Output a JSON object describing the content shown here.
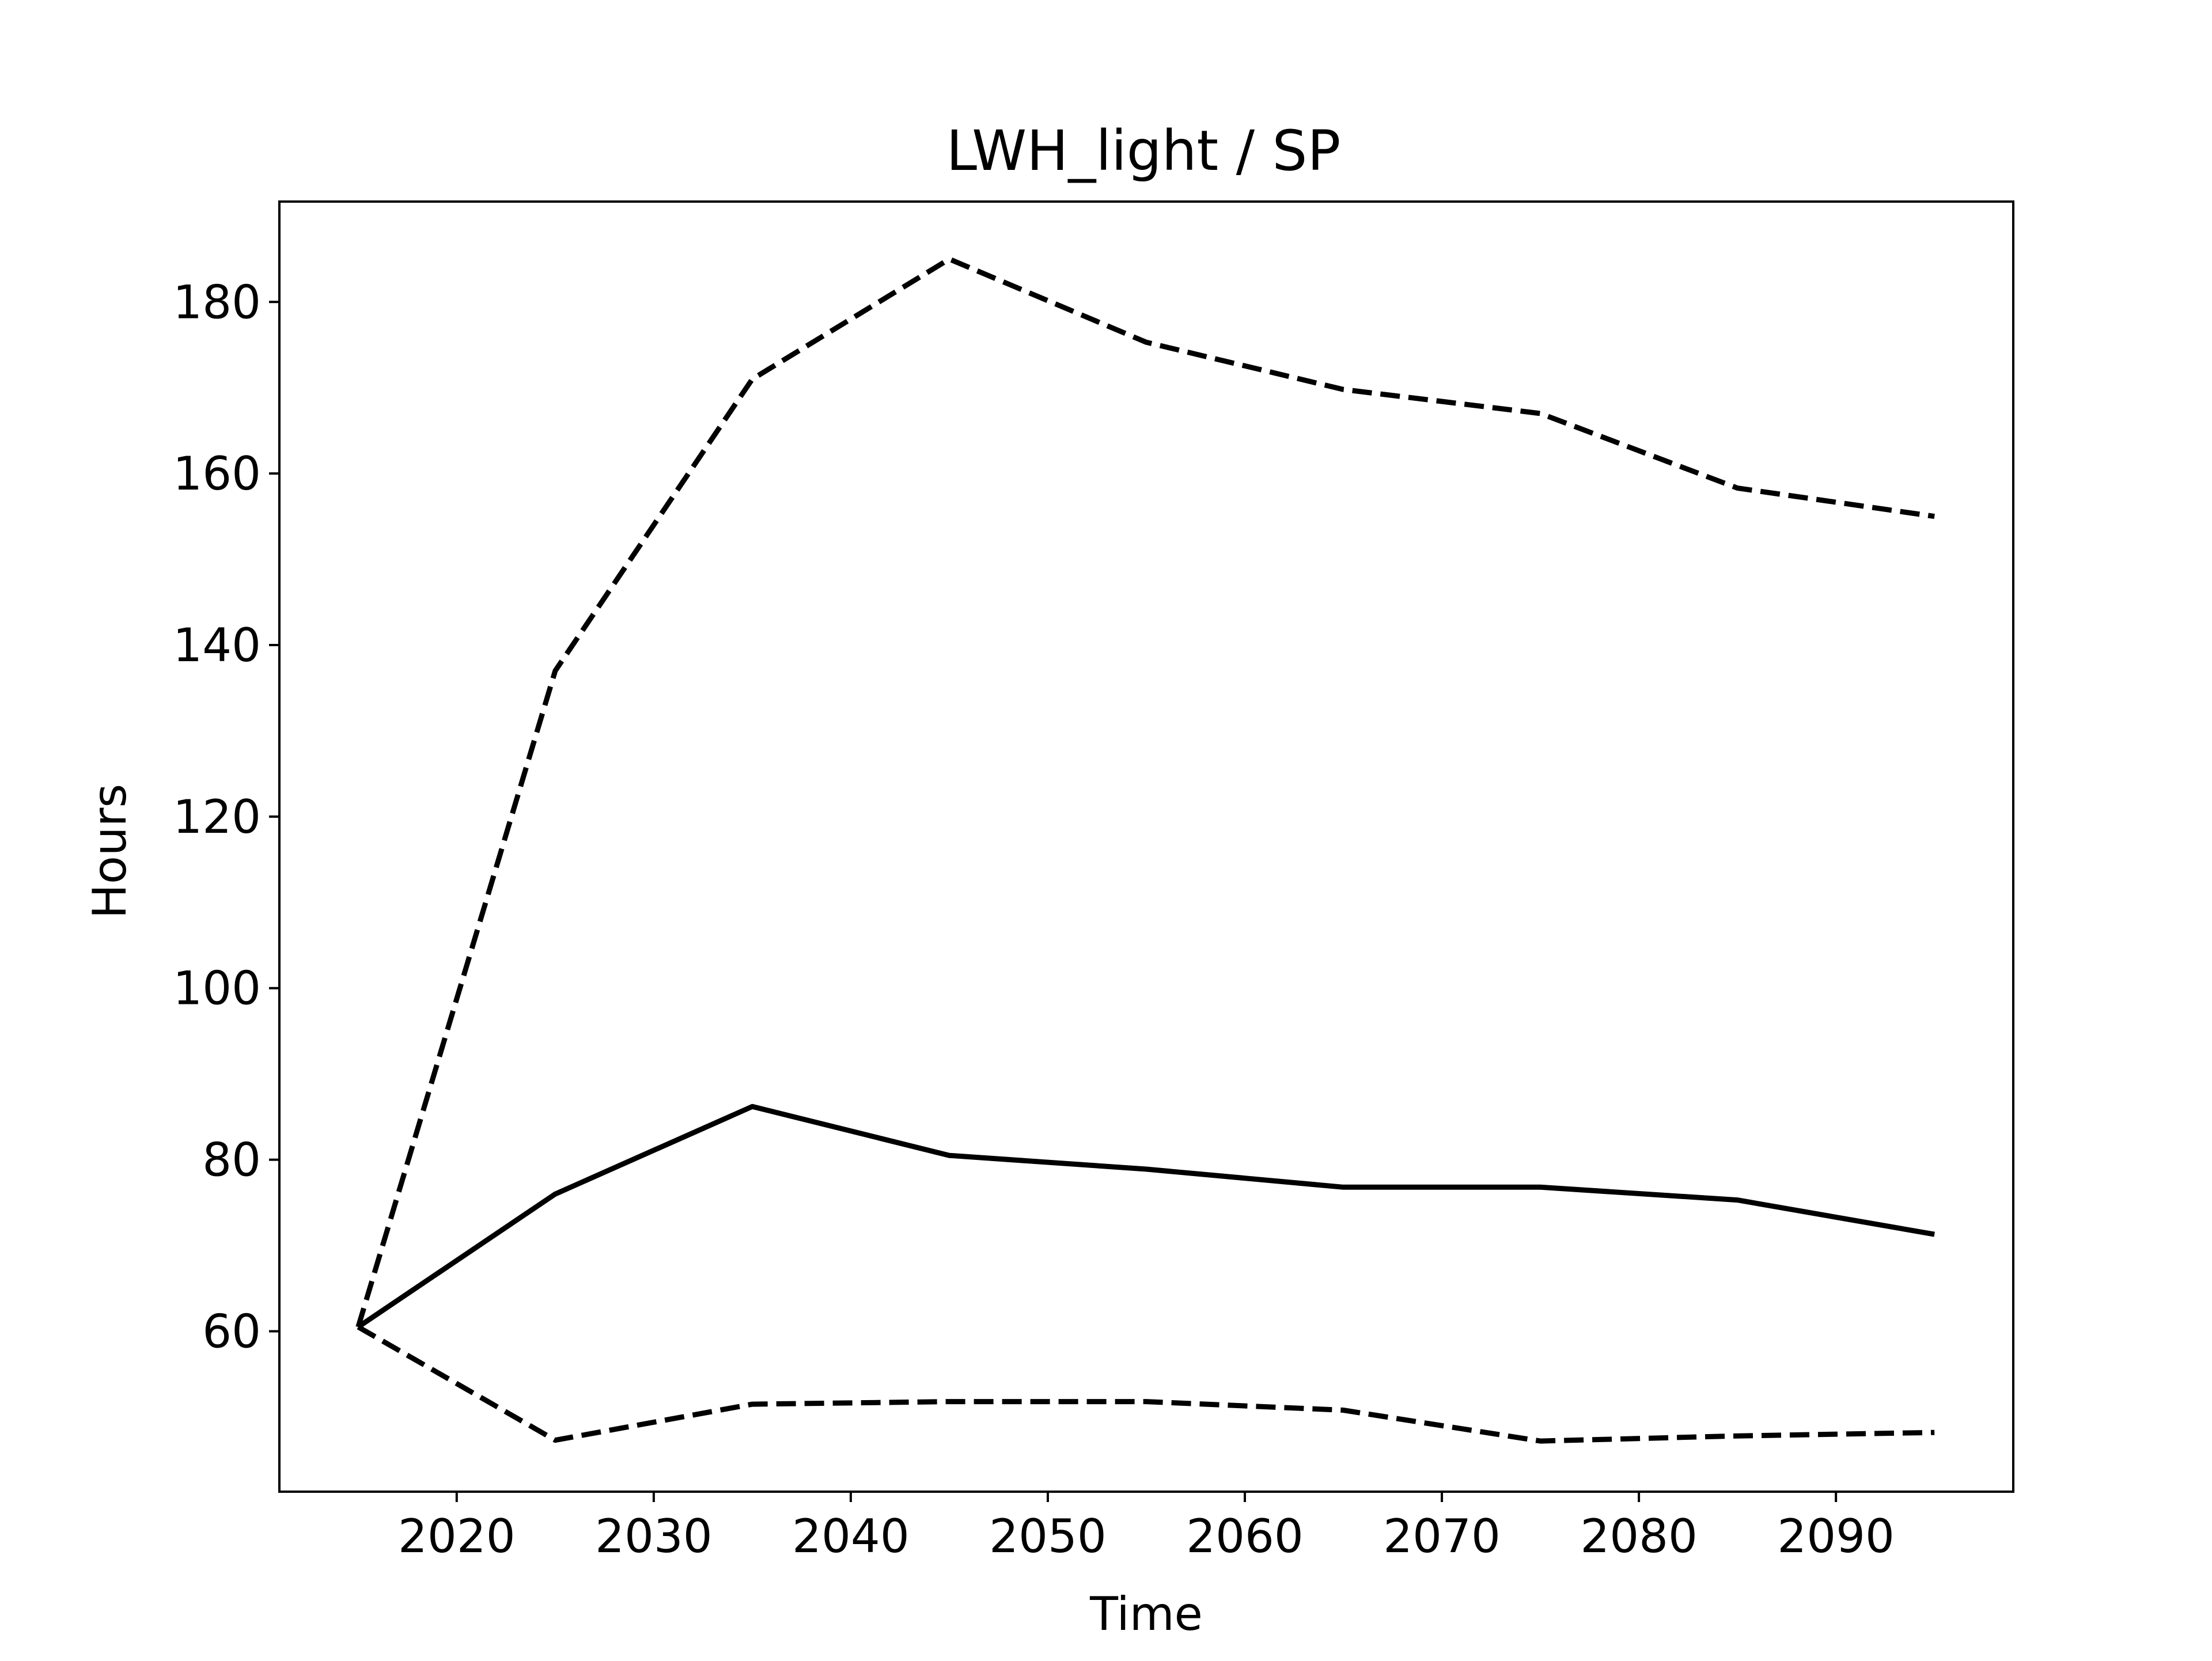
{
  "chart_data": {
    "type": "line",
    "title": "LWH_light / SP",
    "xlabel": "Time",
    "ylabel": "Hours",
    "x": [
      2015,
      2025,
      2035,
      2045,
      2055,
      2065,
      2075,
      2085,
      2095
    ],
    "series": [
      {
        "style": "solid",
        "color": "#000000",
        "values": [
          60.5,
          76.0,
          86.2,
          80.5,
          78.9,
          76.8,
          76.8,
          75.3,
          71.3
        ]
      },
      {
        "style": "dashed",
        "color": "#000000",
        "values": [
          60.5,
          137.0,
          171.0,
          185.0,
          175.3,
          169.8,
          167.0,
          158.3,
          155.0
        ]
      },
      {
        "style": "dashed",
        "color": "#000000",
        "values": [
          60.5,
          47.3,
          51.5,
          51.8,
          51.8,
          50.8,
          47.2,
          47.8,
          48.2
        ]
      }
    ],
    "xlim": [
      2011,
      2099
    ],
    "ylim": [
      41.3,
      191.7
    ],
    "xticks": [
      "2020",
      "2030",
      "2040",
      "2050",
      "2060",
      "2070",
      "2080",
      "2090"
    ],
    "yticks": [
      "60",
      "80",
      "100",
      "120",
      "140",
      "160",
      "180"
    ],
    "grid": false,
    "legend": "none"
  }
}
